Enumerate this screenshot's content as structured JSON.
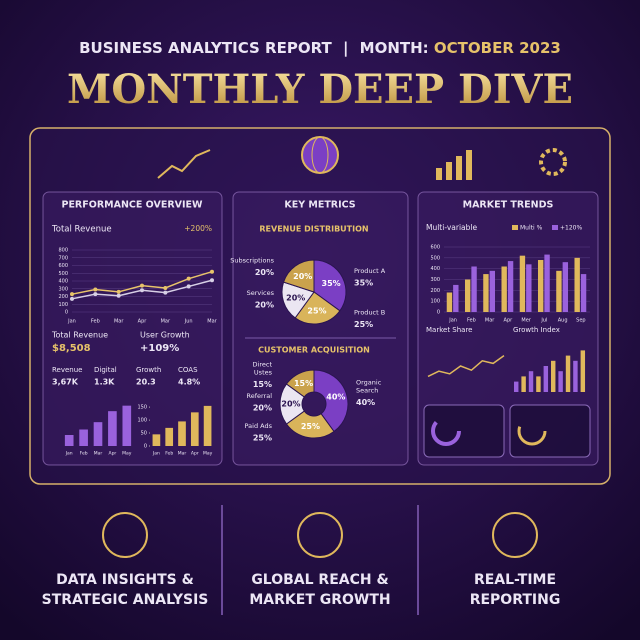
{
  "header": {
    "kicker": "BUSINESS ANALYTICS REPORT",
    "separator": "|",
    "month_label": "MONTH:",
    "month": "OCTOBER 2023",
    "title": "MONTHLY DEEP DIVE"
  },
  "performance": {
    "title": "PERFORMANCE OVERVIEW",
    "revenue_chart": {
      "type": "line",
      "title": "Total Revenue",
      "badge": "+200%",
      "categories": [
        "Jan",
        "Feb",
        "Mar",
        "Apr",
        "Mar",
        "Jun",
        "Mar"
      ],
      "ylim": [
        0,
        800
      ],
      "yticks": [
        0,
        100,
        200,
        300,
        400,
        500,
        600,
        700,
        800
      ],
      "grid": true,
      "series": [
        {
          "color": "#e8c46a",
          "values": [
            230,
            290,
            260,
            340,
            310,
            430,
            520
          ]
        },
        {
          "color": "#d8d0e6",
          "values": [
            170,
            230,
            210,
            280,
            250,
            330,
            410
          ]
        }
      ]
    },
    "kpis": [
      {
        "label": "Total Revenue",
        "value": "$8,508"
      },
      {
        "label": "User Growth",
        "value": "+109%"
      }
    ],
    "stats": [
      {
        "label": "Revenue",
        "value": "3,67K"
      },
      {
        "label": "Digital",
        "value": "1.3K"
      },
      {
        "label": "Growth",
        "value": "20.3"
      },
      {
        "label": "COAS",
        "value": "4.8%"
      }
    ],
    "bar_charts": [
      {
        "type": "bar",
        "categories": [
          "Jan",
          "Feb",
          "Mar",
          "Apr",
          "May"
        ],
        "ylim": [
          0,
          120
        ],
        "values": [
          30,
          45,
          65,
          95,
          110
        ],
        "color": "#9a62dd"
      },
      {
        "type": "bar",
        "categories": [
          "Jan",
          "Feb",
          "Mar",
          "Apr",
          "May"
        ],
        "ylim": [
          0,
          170
        ],
        "yticks": [
          0,
          50,
          100,
          150
        ],
        "values": [
          45,
          70,
          95,
          130,
          155
        ],
        "color": "#e0b85c"
      }
    ]
  },
  "key_metrics": {
    "title": "KEY METRICS",
    "revenue_distribution": {
      "type": "pie",
      "title": "REVENUE DISTRIBUTION",
      "slices": [
        {
          "label": [
            "Product A"
          ],
          "value": 35,
          "value_label": "35%",
          "color": "#7b3fc4"
        },
        {
          "label": [
            "Product B"
          ],
          "value": 25,
          "value_label": "25%",
          "color": "#d9b45a"
        },
        {
          "label": [
            "Services"
          ],
          "value": 20,
          "value_label": "20%",
          "color": "#ebe6f2"
        },
        {
          "label": [
            "Subscriptions"
          ],
          "value": 20,
          "value_label": "20%",
          "color": "#caa24c"
        }
      ]
    },
    "customer_acquisition": {
      "type": "donut",
      "title": "CUSTOMER ACQUISITION",
      "slices": [
        {
          "label": [
            "Organic",
            "Search"
          ],
          "value": 40,
          "value_label": "40%",
          "color": "#7b3fc4"
        },
        {
          "label": [
            "Paid Ads"
          ],
          "value": 25,
          "value_label": "25%",
          "color": "#d9b45a"
        },
        {
          "label": [
            "Referral"
          ],
          "value": 20,
          "value_label": "20%",
          "color": "#ebe6f2"
        },
        {
          "label": [
            "Direct",
            "Ustes"
          ],
          "value": 15,
          "value_label": "15%",
          "color": "#caa24c"
        }
      ]
    }
  },
  "market_trends": {
    "title": "MARKET TRENDS",
    "chart": {
      "type": "bar",
      "title": "Multi-variable",
      "categories": [
        "Jan",
        "Feb",
        "Mar",
        "Apr",
        "Mer",
        "Jul",
        "Aug",
        "Sep"
      ],
      "ylim": [
        0,
        600
      ],
      "yticks": [
        0,
        100,
        200,
        300,
        400,
        500,
        600
      ],
      "series": [
        {
          "name": "Multi %",
          "color": "#e0b85c",
          "values": [
            180,
            300,
            350,
            420,
            520,
            480,
            380,
            500
          ]
        },
        {
          "name": "+120%",
          "color": "#9a62dd",
          "values": [
            250,
            420,
            380,
            470,
            440,
            530,
            460,
            350
          ]
        }
      ]
    },
    "market_share": {
      "type": "line",
      "title": "Market Share",
      "ylim": [
        0,
        10
      ],
      "values": [
        3,
        4,
        3.5,
        5,
        4.2,
        6,
        5.5,
        7
      ]
    },
    "growth_index": {
      "type": "bar",
      "title": "Growth Index",
      "ylim": [
        0,
        10
      ],
      "values": [
        2,
        3,
        4,
        3,
        5,
        6,
        4,
        7,
        6,
        8
      ]
    }
  },
  "features": [
    {
      "lines": [
        "DATA INSIGHTS &",
        "STRATEGIC ANALYSIS"
      ]
    },
    {
      "lines": [
        "GLOBAL REACH &",
        "MARKET GROWTH"
      ]
    },
    {
      "lines": [
        "REAL-TIME",
        "REPORTING"
      ]
    }
  ]
}
